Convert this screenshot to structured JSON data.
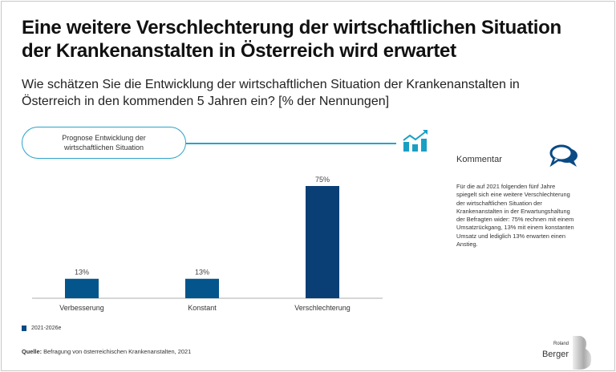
{
  "title_line1": "Eine weitere Verschlechterung der wirtschaftlichen Situation",
  "title_line2": "der Krankenanstalten in Österreich wird erwartet",
  "subtitle_line1": "Wie schätzen Sie die Entwicklung der wirtschaftlichen Situation der Krankenanstalten in",
  "subtitle_line2": "Österreich in den kommenden 5 Jahren ein? [% der Nennungen]",
  "pill_label": "Prognose Entwicklung der wirtschaftlichen Situation",
  "comment": {
    "title": "Kommentar",
    "text": "Für die auf 2021 folgenden fünf Jahre spiegelt sich eine weitere Verschlechterung der wirtschaftlichen Situation der Krankenanstalten in der Erwartungshaltung der Befragten wider: 75% rechnen mit einem Umsatzrückgang, 13% mit einem konstanten Umsatz und lediglich 13% erwarten einen Anstieg."
  },
  "chart_data": {
    "type": "bar",
    "categories": [
      "Verbesserung",
      "Konstant",
      "Verschlechterung"
    ],
    "series": [
      {
        "name": "2021-2026e",
        "values": [
          13,
          13,
          75
        ]
      }
    ],
    "data_labels": [
      "13%",
      "13%",
      "75%"
    ],
    "ylim": [
      0,
      75
    ],
    "grid": false,
    "legend": "bottom-left",
    "colors": [
      "#03558c",
      "#03558c",
      "#0a3f76"
    ]
  },
  "legend_label": "2021-2026e",
  "source_label": "Quelle:",
  "source_text": " Befragung von österreichischen Krankenanstalten, 2021",
  "logo": {
    "line1": "Roland",
    "line2": "Berger"
  },
  "colors": {
    "accent": "#2aa3c8",
    "bar": "#03558c",
    "bar_dark": "#0a3f76"
  }
}
